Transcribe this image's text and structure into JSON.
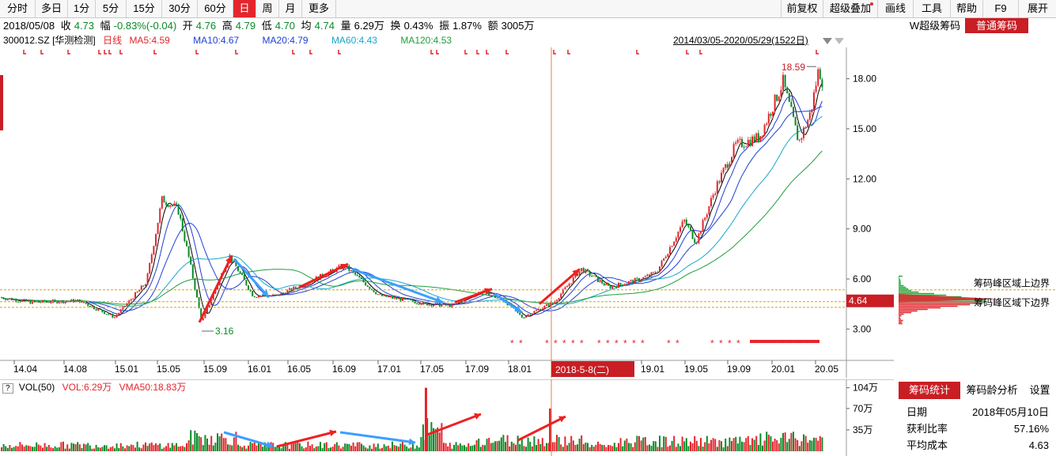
{
  "toolbar": {
    "periods": [
      "分时",
      "多日",
      "1分",
      "5分",
      "15分",
      "30分",
      "60分",
      "日",
      "周",
      "月",
      "更多"
    ],
    "active_period": "日",
    "right_buttons": [
      "前复权",
      "超级叠加",
      "画线",
      "工具",
      "帮助",
      "F9",
      "展开"
    ]
  },
  "quote": {
    "date": "2018/05/08",
    "close_label": "收",
    "close": "4.73",
    "change_label": "幅",
    "change": "-0.83%(-0.04)",
    "open_label": "开",
    "open": "4.76",
    "high_label": "高",
    "high": "4.79",
    "low_label": "低",
    "low": "4.70",
    "avg_label": "均",
    "avg": "4.74",
    "vol_label": "量",
    "vol": "6.29万",
    "turnover_label": "换",
    "turnover": "0.43%",
    "amplitude_label": "振",
    "amplitude": "1.87%",
    "amount_label": "额",
    "amount": "3005万"
  },
  "ma_row": {
    "code": "300012.SZ",
    "name": "[华测检测]",
    "period": "日线",
    "ma5": "MA5:4.59",
    "ma10": "MA10:4.67",
    "ma20": "MA20:4.79",
    "ma60": "MA60:4.43",
    "ma120": "MA120:4.53",
    "range": "2014/03/05-2020/05/29(1522日)"
  },
  "colors": {
    "accent_red": "#e3262d",
    "up": "#e3262d",
    "down": "#0a8a28",
    "ma5": "#000000",
    "ma10": "#1f3fd6",
    "ma20": "#1f3fd6",
    "ma60": "#17a8c8",
    "ma120": "#1e9e3a"
  },
  "chart_data": {
    "type": "candlestick",
    "ylim": [
      1.5,
      19.5
    ],
    "y_ticks": [
      "18.00",
      "15.00",
      "12.00",
      "9.00",
      "6.00",
      "3.00"
    ],
    "y_tick_values": [
      18,
      15,
      12,
      9,
      6,
      3
    ],
    "x_ticks": [
      "14.04",
      "14.08",
      "15.01",
      "15.05",
      "15.09",
      "16.01",
      "16.05",
      "16.09",
      "17.01",
      "17.05",
      "17.09",
      "18.01",
      "19.01",
      "19.05",
      "19.09",
      "20.01",
      "20.05"
    ],
    "cursor_label": "2018-5-8(二)",
    "current_price_label": "4.64",
    "high_label": "18.59",
    "low_label": "3.16",
    "key_points": [
      {
        "x": 0,
        "y": 4.9
      },
      {
        "x": 40,
        "y": 4.6
      },
      {
        "x": 100,
        "y": 4.7
      },
      {
        "x": 145,
        "y": 3.7
      },
      {
        "x": 185,
        "y": 5.8
      },
      {
        "x": 205,
        "y": 10.8
      },
      {
        "x": 225,
        "y": 10.2
      },
      {
        "x": 240,
        "y": 7.0
      },
      {
        "x": 255,
        "y": 3.4
      },
      {
        "x": 290,
        "y": 7.4
      },
      {
        "x": 320,
        "y": 5.0
      },
      {
        "x": 350,
        "y": 5.0
      },
      {
        "x": 380,
        "y": 5.6
      },
      {
        "x": 435,
        "y": 6.8
      },
      {
        "x": 480,
        "y": 5.0
      },
      {
        "x": 540,
        "y": 4.5
      },
      {
        "x": 570,
        "y": 4.4
      },
      {
        "x": 610,
        "y": 5.3
      },
      {
        "x": 640,
        "y": 4.6
      },
      {
        "x": 660,
        "y": 3.7
      },
      {
        "x": 700,
        "y": 4.6
      },
      {
        "x": 735,
        "y": 6.6
      },
      {
        "x": 770,
        "y": 5.5
      },
      {
        "x": 810,
        "y": 6.0
      },
      {
        "x": 830,
        "y": 6.4
      },
      {
        "x": 865,
        "y": 9.5
      },
      {
        "x": 880,
        "y": 8.2
      },
      {
        "x": 905,
        "y": 11.5
      },
      {
        "x": 930,
        "y": 14.0
      },
      {
        "x": 960,
        "y": 14.5
      },
      {
        "x": 990,
        "y": 17.8
      },
      {
        "x": 1010,
        "y": 14.2
      },
      {
        "x": 1025,
        "y": 16.0
      },
      {
        "x": 1035,
        "y": 18.6
      },
      {
        "x": 1042,
        "y": 17.5
      }
    ],
    "annotations": {
      "chip_upper": "5.35",
      "chip_upper_text": "筹码峰区域上边界",
      "chip_lower_text": "筹码峰区域下边界"
    }
  },
  "vol": {
    "label": "VOL(50)",
    "vol": "VOL:6.29万",
    "vma": "VMA50:18.83万",
    "ticks": [
      "104万",
      "70万",
      "35万"
    ]
  },
  "right_panel": {
    "tabs": [
      "W超级筹码",
      "普通筹码"
    ],
    "active_tab": "普通筹码",
    "stat_tabs": [
      "筹码统计",
      "筹码龄分析",
      "设置"
    ],
    "active_stat_tab": "筹码统计",
    "stats": [
      {
        "label": "日期",
        "value": "2018年05月10日"
      },
      {
        "label": "获利比率",
        "value": "57.16%"
      },
      {
        "label": "平均成本",
        "value": "4.63"
      }
    ]
  }
}
